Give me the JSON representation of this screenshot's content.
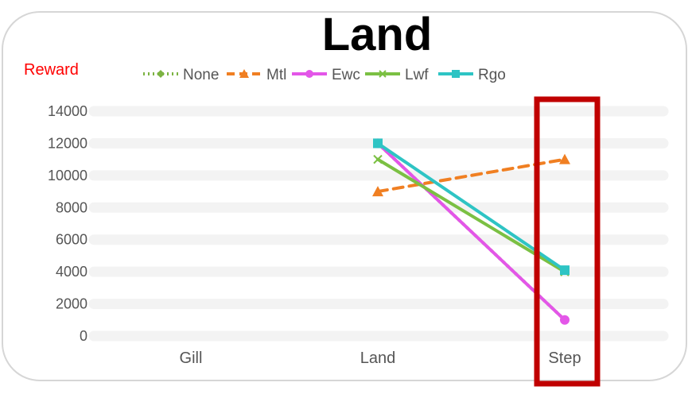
{
  "chart_data": {
    "type": "line",
    "title": "Land",
    "ylabel": "Reward",
    "xlabel": "",
    "categories": [
      "Gill",
      "Land",
      "Step"
    ],
    "ylim": [
      0,
      14000
    ],
    "yticks": [
      0,
      2000,
      4000,
      6000,
      8000,
      10000,
      12000,
      14000
    ],
    "legend_position": "top",
    "grid": true,
    "series": [
      {
        "name": "None",
        "values": [
          null,
          12000,
          1000
        ],
        "color": "#7cb342",
        "dash": "2,5",
        "marker": "diamond"
      },
      {
        "name": "Mtl",
        "values": [
          null,
          9000,
          11000
        ],
        "color": "#f07f22",
        "dash": "12,8",
        "marker": "triangle"
      },
      {
        "name": "Ewc",
        "values": [
          null,
          12000,
          1000
        ],
        "color": "#e356e8",
        "dash": "",
        "marker": "circle"
      },
      {
        "name": "Lwf",
        "values": [
          null,
          11000,
          4000
        ],
        "color": "#7bc043",
        "dash": "",
        "marker": "x"
      },
      {
        "name": "Rgo",
        "values": [
          null,
          12000,
          4100
        ],
        "color": "#2ec4c4",
        "dash": "",
        "marker": "square"
      }
    ],
    "highlight": {
      "category": "Step",
      "color": "#c00000"
    }
  }
}
